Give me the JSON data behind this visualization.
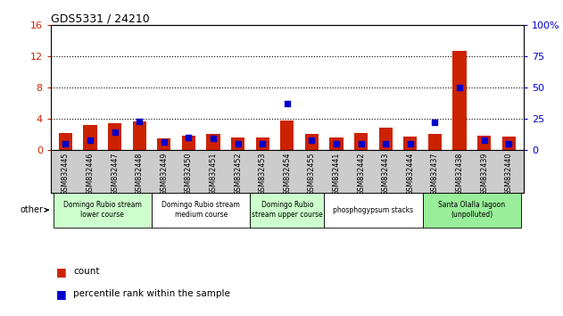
{
  "title": "GDS5331 / 24210",
  "samples": [
    "GSM832445",
    "GSM832446",
    "GSM832447",
    "GSM832448",
    "GSM832449",
    "GSM832450",
    "GSM832451",
    "GSM832452",
    "GSM832453",
    "GSM832454",
    "GSM832455",
    "GSM832441",
    "GSM832442",
    "GSM832443",
    "GSM832444",
    "GSM832437",
    "GSM832438",
    "GSM832439",
    "GSM832440"
  ],
  "counts": [
    2.1,
    3.2,
    3.4,
    3.6,
    1.5,
    1.8,
    2.0,
    1.6,
    1.6,
    3.8,
    2.0,
    1.6,
    2.1,
    2.8,
    1.7,
    2.0,
    12.7,
    1.8,
    1.7
  ],
  "percentiles": [
    5,
    8,
    14,
    23,
    6,
    10,
    9,
    5,
    5,
    37,
    8,
    5,
    5,
    5,
    5,
    22,
    50,
    8,
    5
  ],
  "left_ylim": [
    0,
    16
  ],
  "right_ylim": [
    0,
    100
  ],
  "left_yticks": [
    0,
    4,
    8,
    12,
    16
  ],
  "right_yticks": [
    0,
    25,
    50,
    75,
    100
  ],
  "bar_color": "#cc2200",
  "dot_color": "#0000cc",
  "tick_bg_color": "#cccccc",
  "groups": [
    {
      "label": "Domingo Rubio stream\nlower course",
      "start": 0,
      "end": 3,
      "color": "#ccffcc"
    },
    {
      "label": "Domingo Rubio stream\nmedium course",
      "start": 4,
      "end": 7,
      "color": "#ffffff"
    },
    {
      "label": "Domingo Rubio\nstream upper course",
      "start": 8,
      "end": 10,
      "color": "#ccffcc"
    },
    {
      "label": "phosphogypsum stacks",
      "start": 11,
      "end": 14,
      "color": "#ffffff"
    },
    {
      "label": "Santa Olalla lagoon\n(unpolluted)",
      "start": 15,
      "end": 18,
      "color": "#99ee99"
    }
  ],
  "legend_count_label": "count",
  "legend_pct_label": "percentile rank within the sample",
  "other_label": "other"
}
